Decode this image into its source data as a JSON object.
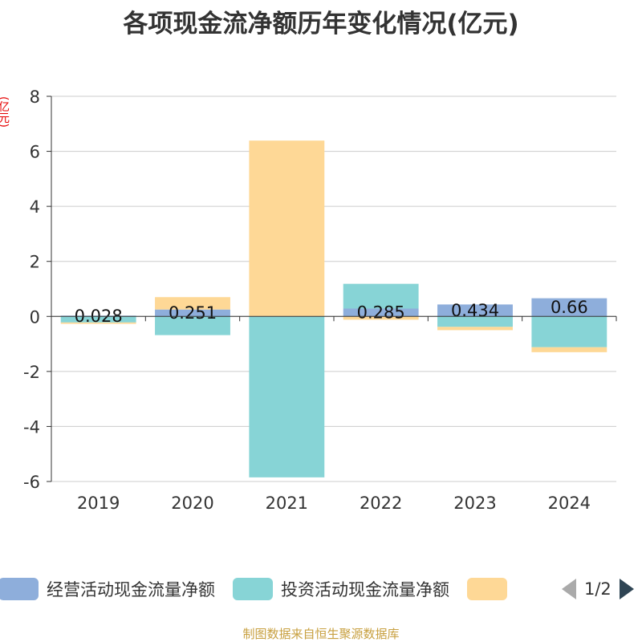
{
  "title": "各项现金流净额历年变化情况(亿元)",
  "y_unit": "(亿元)",
  "source": "制图数据来自恒生聚源数据库",
  "legend": {
    "items": [
      {
        "label": "经营活动现金流量净额",
        "color": "#8eaedb"
      },
      {
        "label": "投资活动现金流量净额",
        "color": "#87d4d6"
      },
      {
        "label": "",
        "color": "#fed896"
      }
    ],
    "page": "1/2"
  },
  "chart_data": {
    "type": "bar",
    "stacked": true,
    "title": "各项现金流净额历年变化情况(亿元)",
    "ylabel": "(亿元)",
    "ylim": [
      -6,
      8
    ],
    "yticks": [
      -6,
      -4,
      -2,
      0,
      2,
      4,
      6,
      8
    ],
    "categories": [
      "2019",
      "2020",
      "2021",
      "2022",
      "2023",
      "2024"
    ],
    "series": [
      {
        "name": "经营活动现金流量净额",
        "color": "#8eaedb",
        "values": [
          0.028,
          0.251,
          0.01,
          0.285,
          0.434,
          0.66
        ],
        "labels": [
          "0.028",
          "0.251",
          "",
          "0.285",
          "0.434",
          "0.66"
        ]
      },
      {
        "name": "投资活动现金流量净额",
        "color": "#87d4d6",
        "values": [
          -0.22,
          -0.68,
          -5.85,
          0.9,
          -0.38,
          -1.12
        ]
      },
      {
        "name": "",
        "color": "#fed896",
        "values": [
          -0.05,
          0.45,
          6.38,
          -0.12,
          -0.12,
          -0.18
        ]
      }
    ]
  }
}
